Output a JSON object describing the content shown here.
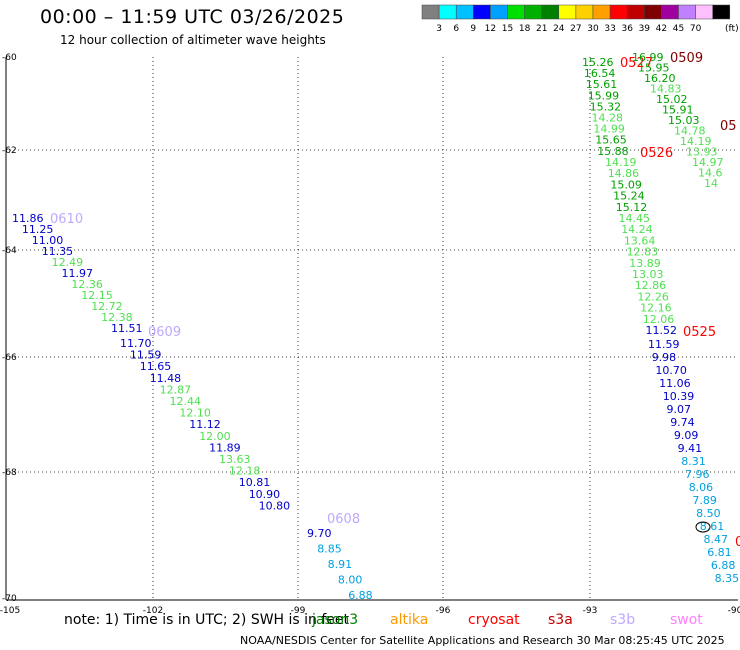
{
  "title": "00:00 – 11:59 UTC 03/26/2025",
  "subtitle": "12 hour collection of altimeter wave heights",
  "colorbar": {
    "colors": [
      "#808080",
      "#00ffff",
      "#00c0ff",
      "#0000ff",
      "#00a0ff",
      "#00e000",
      "#00b000",
      "#008000",
      "#ffff00",
      "#ffd000",
      "#ffa000",
      "#ff0000",
      "#c00000",
      "#800000",
      "#a000a0",
      "#c080ff",
      "#ffc0ff",
      "#000000"
    ],
    "labels": [
      "3",
      "6",
      "9",
      "12",
      "15",
      "18",
      "21",
      "24",
      "27",
      "30",
      "33",
      "36",
      "39",
      "42",
      "45",
      "70"
    ],
    "unit": "(ft)"
  },
  "axes": {
    "y_labels": [
      "-60",
      "-62",
      "-64",
      "-66",
      "-68",
      "-70"
    ],
    "x_labels": [
      "-105",
      "-102",
      "-99",
      "-96",
      "-93",
      "-90"
    ]
  },
  "tracks": [
    {
      "name": "0610",
      "color": "#c0a8ff",
      "points": [
        "11.86",
        "11.25",
        "11.00",
        "11.35",
        "12.49",
        "11.97",
        "12.36",
        "12.15",
        "12.72",
        "12.38",
        "11.51"
      ]
    },
    {
      "name": "0609",
      "color": "#c0a8ff",
      "points": [
        "11.70",
        "11.59",
        "11.65",
        "11.48",
        "12.87",
        "12.44",
        "12.10",
        "11.12",
        "12.00",
        "11.89",
        "13.63",
        "12.18",
        "10.81",
        "10.90",
        "10.80"
      ]
    },
    {
      "name": "0608",
      "color": "#c0a8ff",
      "points": [
        "9.70",
        "8.85",
        "8.91",
        "8.00",
        "6.88"
      ]
    },
    {
      "name": "0527",
      "color": "#ff0000",
      "points": [
        "15.26",
        "16.54",
        "15.61",
        "15.99",
        "15.32",
        "14.28",
        "14.99",
        "15.65",
        "15.88"
      ]
    },
    {
      "name": "0526",
      "color": "#ff0000",
      "points": [
        "14.19",
        "14.86",
        "15.09",
        "15.24",
        "15.12",
        "14.45",
        "14.24",
        "13.64",
        "12.83",
        "13.89",
        "13.03",
        "12.86",
        "12.26",
        "12.16",
        "12.06",
        "11.52"
      ]
    },
    {
      "name": "0525",
      "color": "#ff0000",
      "points": [
        "11.59",
        "9.98",
        "10.70",
        "11.06",
        "10.39",
        "9.07",
        "9.74",
        "9.09",
        "9.41",
        "8.31",
        "7.96",
        "8.06",
        "7.89",
        "8.50",
        "8.61",
        "8.47",
        "6.81",
        "6.88",
        "8.35"
      ]
    },
    {
      "name": "0509",
      "color": "#800000",
      "points": [
        "16.99",
        "15.95",
        "16.20",
        "14.83",
        "15.02",
        "15.91",
        "15.03",
        "14.78",
        "14.19",
        "13.93",
        "14.97",
        "14.6",
        "14"
      ]
    },
    {
      "name": "05",
      "color": "#800000",
      "points": []
    },
    {
      "name": "0",
      "color": "#ff0000",
      "points": []
    }
  ],
  "note": "note:  1) Time is in UTC;  2) SWH is in feet",
  "satellites": [
    {
      "name": "jason3",
      "color": "#008000"
    },
    {
      "name": "altika",
      "color": "#ff9900"
    },
    {
      "name": "cryosat",
      "color": "#ff0000"
    },
    {
      "name": "s3a",
      "color": "#c00000"
    },
    {
      "name": "s3b",
      "color": "#c0a8ff"
    },
    {
      "name": "swot",
      "color": "#ff80ff"
    }
  ],
  "credit": "NOAA/NESDIS Center for Satellite Applications and Research    30 Mar 08:25:45 UTC 2025"
}
